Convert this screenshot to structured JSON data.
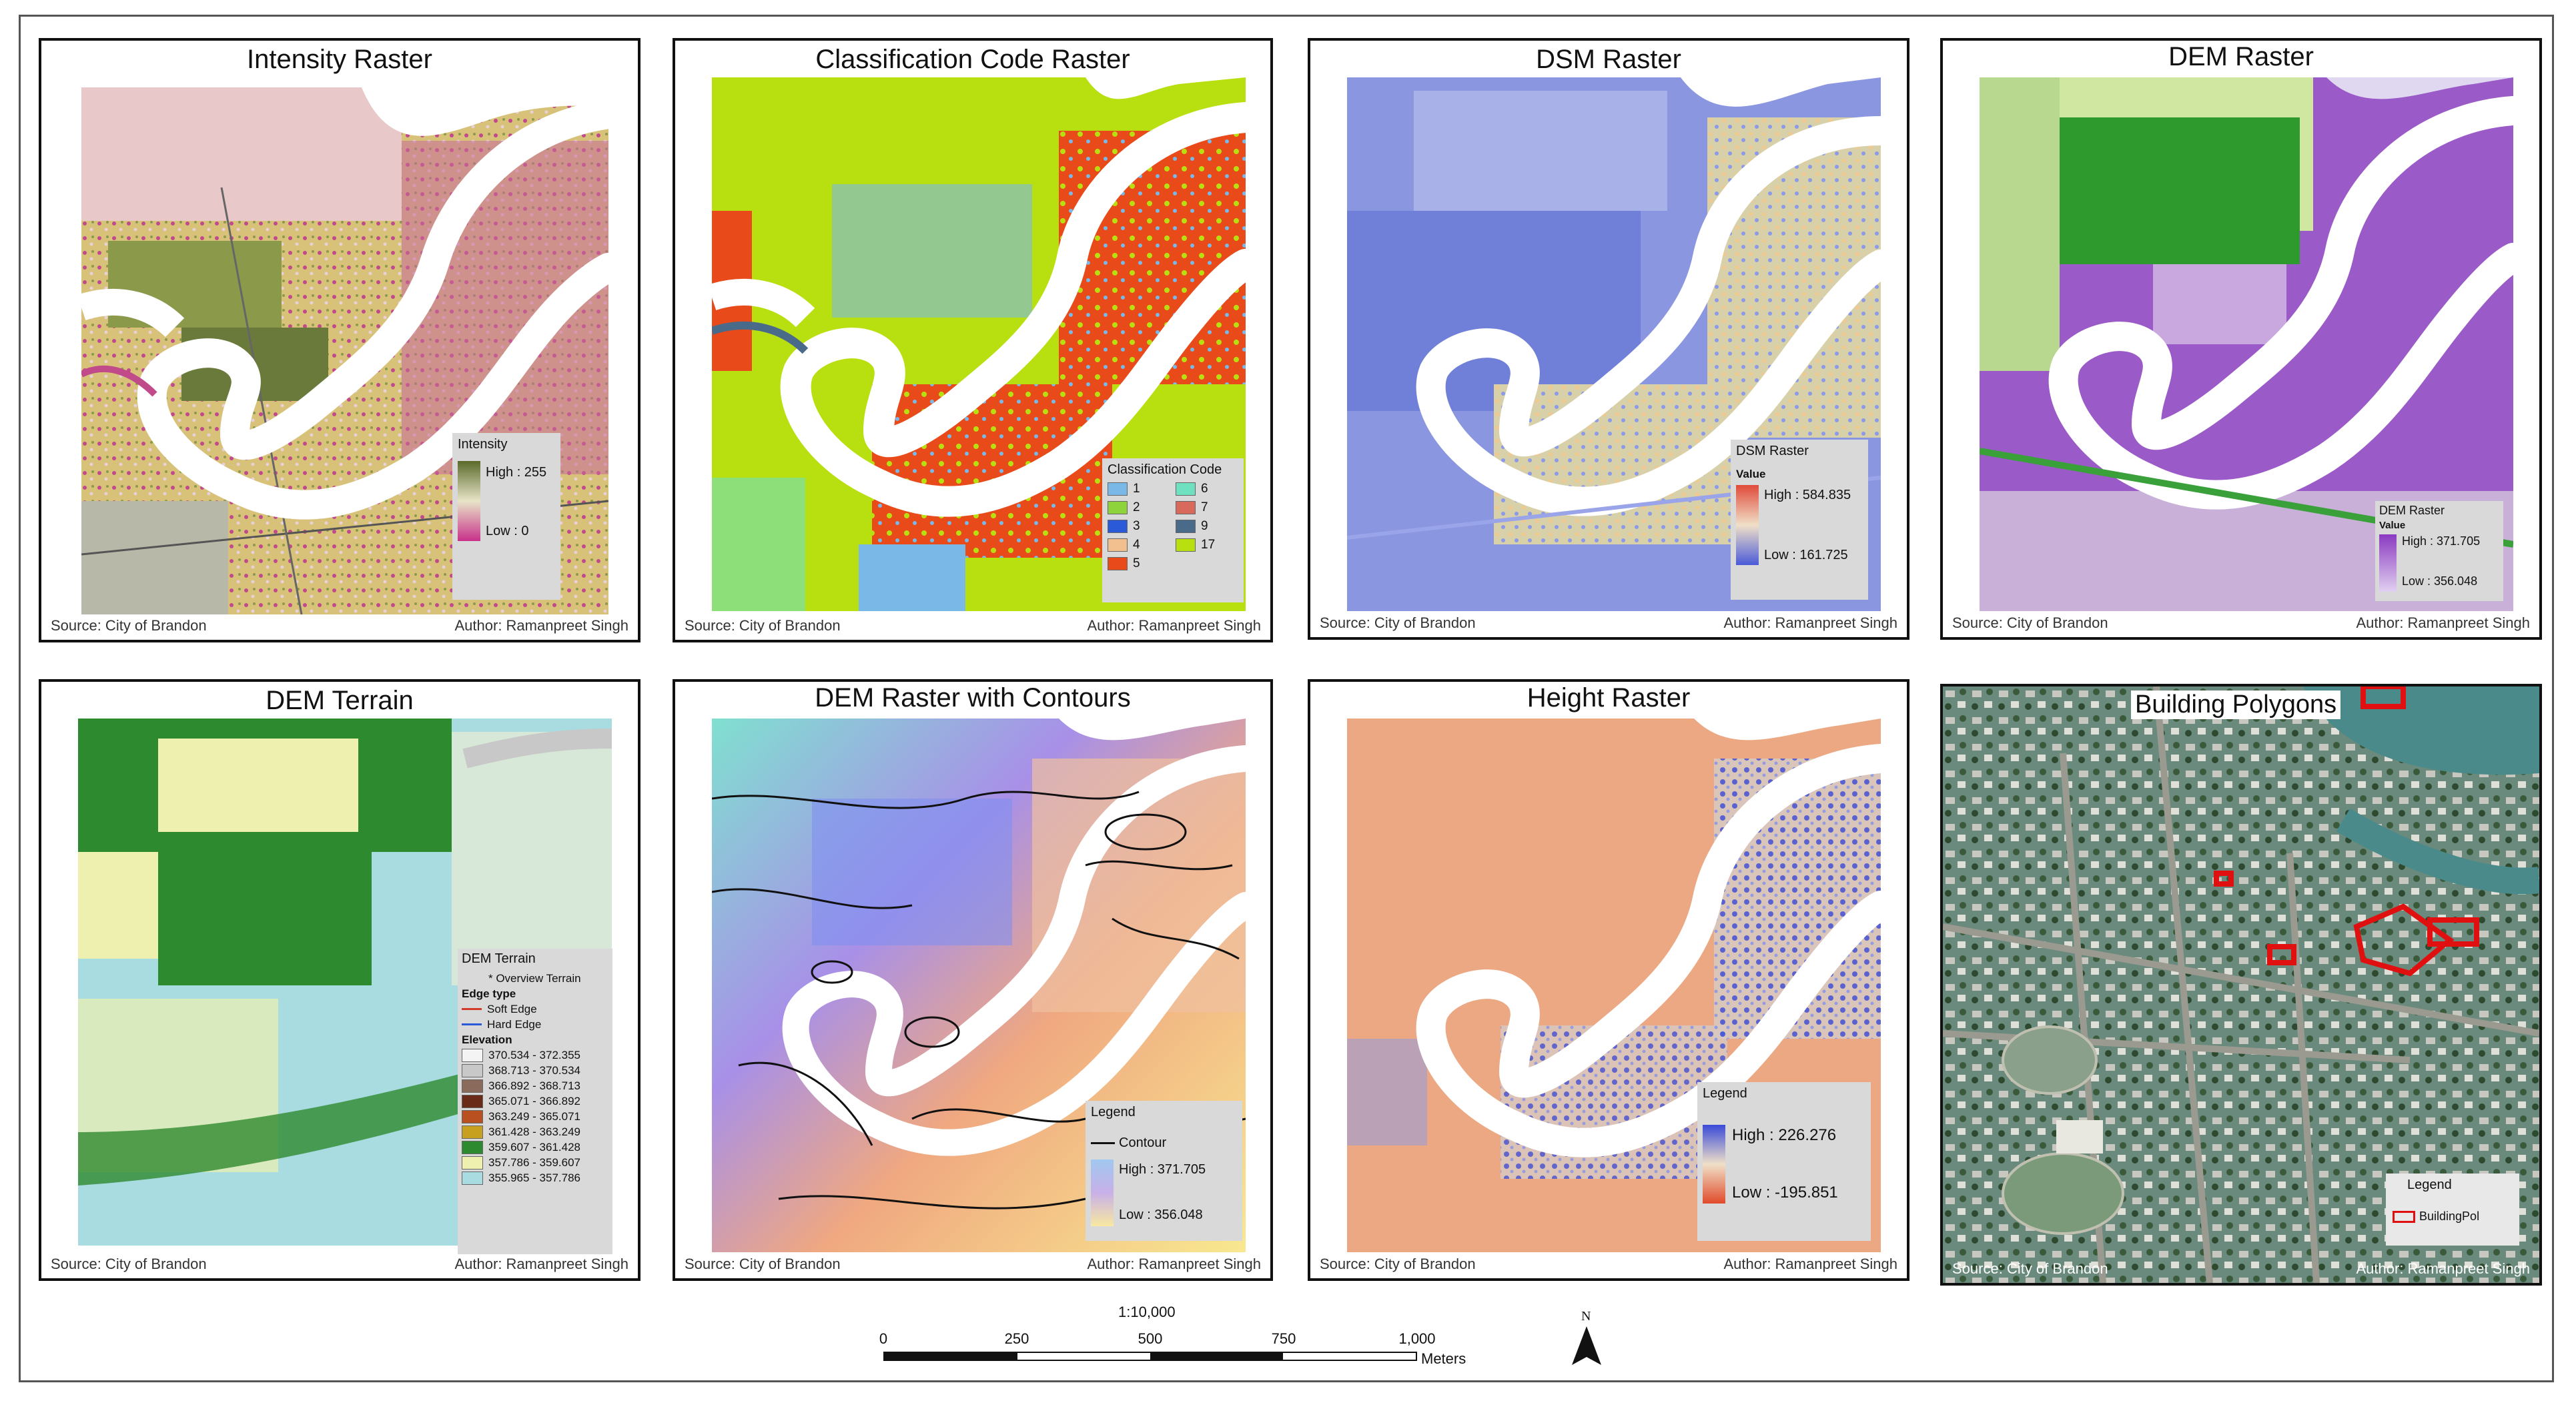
{
  "panels": {
    "intensity": {
      "title": "Intensity Raster",
      "source": "Source: City of Brandon",
      "author": "Author: Ramanpreet Singh",
      "legend": {
        "title": "Intensity",
        "high": "High : 255",
        "low": "Low : 0"
      }
    },
    "classification": {
      "title": "Classification Code Raster",
      "source": "Source: City of Brandon",
      "author": "Author: Ramanpreet Singh",
      "legend": {
        "title": "Classification Code",
        "items": [
          {
            "label": "1",
            "color": "#7ab8e8"
          },
          {
            "label": "6",
            "color": "#6fe0c0"
          },
          {
            "label": "2",
            "color": "#8ed23c"
          },
          {
            "label": "7",
            "color": "#d86a5c"
          },
          {
            "label": "3",
            "color": "#2a5ad8"
          },
          {
            "label": "9",
            "color": "#4a6a8a"
          },
          {
            "label": "4",
            "color": "#f2c08e"
          },
          {
            "label": "17",
            "color": "#b8e010"
          },
          {
            "label": "5",
            "color": "#e84a1a"
          }
        ]
      }
    },
    "dsm": {
      "title": "DSM Raster",
      "source": "Source: City of Brandon",
      "author": "Author: Ramanpreet Singh",
      "legend": {
        "title": "DSM Raster",
        "subtitle": "Value",
        "high": "High : 584.835",
        "low": "Low : 161.725"
      }
    },
    "dem": {
      "title": "DEM Raster",
      "source": "Source: City of Brandon",
      "author": "Author: Ramanpreet Singh",
      "legend": {
        "title": "DEM Raster",
        "subtitle": "Value",
        "high": "High : 371.705",
        "low": "Low : 356.048"
      }
    },
    "terrain": {
      "title": "DEM Terrain",
      "source": "Source: City of Brandon",
      "author": "Author: Ramanpreet Singh",
      "legend": {
        "title": "DEM Terrain",
        "overview": "* Overview Terrain",
        "edge_heading": "Edge type",
        "edges": [
          {
            "label": "Soft Edge",
            "color": "#d23a2a"
          },
          {
            "label": "Hard Edge",
            "color": "#2a5ad8"
          }
        ],
        "elev_heading": "Elevation",
        "classes": [
          {
            "label": "370.534 - 372.355",
            "color": "#f4f4f4"
          },
          {
            "label": "368.713 - 370.534",
            "color": "#c8c8c8"
          },
          {
            "label": "366.892 - 368.713",
            "color": "#8a6a5a"
          },
          {
            "label": "365.071 - 366.892",
            "color": "#6a2a18"
          },
          {
            "label": "363.249 - 365.071",
            "color": "#b85020"
          },
          {
            "label": "361.428 - 363.249",
            "color": "#c8a020"
          },
          {
            "label": "359.607 - 361.428",
            "color": "#2e8a2e"
          },
          {
            "label": "357.786 - 359.607",
            "color": "#eef0b0"
          },
          {
            "label": "355.965 - 357.786",
            "color": "#a8dce0"
          }
        ]
      }
    },
    "contours": {
      "title": "DEM Raster with Contours",
      "source": "Source: City of Brandon",
      "author": "Author: Ramanpreet Singh",
      "legend": {
        "title": "Legend",
        "contour": "Contour",
        "high": "High : 371.705",
        "low": "Low : 356.048"
      }
    },
    "height": {
      "title": "Height Raster",
      "source": "Source: City of Brandon",
      "author": "Author: Ramanpreet Singh",
      "legend": {
        "title": "Legend",
        "high": "High : 226.276",
        "low": "Low : -195.851"
      }
    },
    "buildings": {
      "title": "Building Polygons",
      "source": "Source: City of Brandon",
      "author": "Author: Ramanpreet Singh",
      "legend": {
        "title": "Legend",
        "item": "BuildingPol"
      }
    }
  },
  "scalebar": {
    "ratio": "1:10,000",
    "ticks": [
      "0",
      "250",
      "500",
      "750",
      "1,000"
    ],
    "unit": "Meters"
  },
  "north_arrow": {
    "label": "N"
  },
  "colors": {
    "river": "#ffffff",
    "frame": "#111111",
    "legend_bg": "#d9d9d9",
    "building_outline": "#e01010"
  }
}
